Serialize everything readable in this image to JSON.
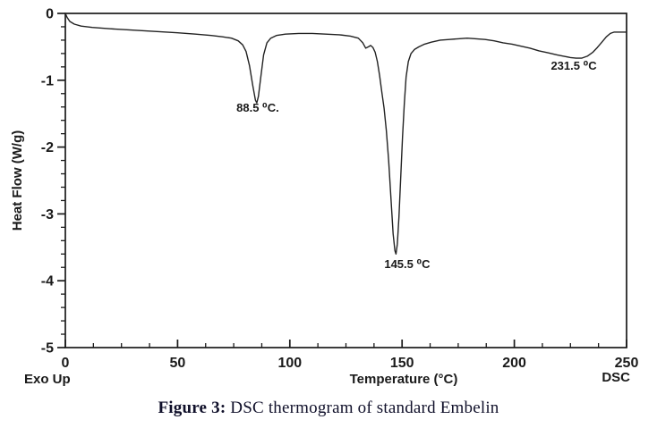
{
  "figure": {
    "caption_prefix": "Figure 3:",
    "caption_text": " DSC thermogram of standard Embelin"
  },
  "chart_data": {
    "type": "line",
    "title": "",
    "xlabel": "Temperature (°C)",
    "ylabel": "Heat Flow (W/g)",
    "xlim": [
      0,
      250
    ],
    "ylim": [
      -5,
      0
    ],
    "x_major_ticks": [
      0,
      50,
      100,
      150,
      200,
      250
    ],
    "x_minor_step": 12.5,
    "y_major_ticks": [
      0,
      -1,
      -2,
      -3,
      -4,
      -5
    ],
    "y_minor_step": 0.2,
    "grid": false,
    "legend": "none",
    "corner_labels": {
      "bottom_left": "Exo Up",
      "bottom_right": "DSC"
    },
    "axis_color": "#1a1a1a",
    "line_color": "#222222",
    "annotations": [
      {
        "label": "88.5 ⁰C.",
        "x": 85.7,
        "y": -1.47
      },
      {
        "label": "145.5 ⁰C",
        "x": 152.3,
        "y": -3.81
      },
      {
        "label": "231.5 ⁰C",
        "x": 226.5,
        "y": -0.84
      }
    ],
    "peaks_celsius": [
      88.5,
      145.5,
      231.5
    ],
    "series": [
      {
        "name": "DSC heat flow",
        "points": [
          [
            0,
            0
          ],
          [
            0.8,
            -0.06
          ],
          [
            2,
            -0.12
          ],
          [
            4,
            -0.16
          ],
          [
            7,
            -0.19
          ],
          [
            12,
            -0.21
          ],
          [
            20,
            -0.23
          ],
          [
            30,
            -0.25
          ],
          [
            40,
            -0.27
          ],
          [
            50,
            -0.29
          ],
          [
            58,
            -0.31
          ],
          [
            65,
            -0.33
          ],
          [
            70,
            -0.35
          ],
          [
            74,
            -0.37
          ],
          [
            77,
            -0.41
          ],
          [
            79,
            -0.47
          ],
          [
            80.5,
            -0.57
          ],
          [
            82,
            -0.78
          ],
          [
            83.5,
            -1.08
          ],
          [
            84.7,
            -1.3
          ],
          [
            85.3,
            -1.34
          ],
          [
            86,
            -1.24
          ],
          [
            87,
            -0.97
          ],
          [
            88.3,
            -0.62
          ],
          [
            89.8,
            -0.44
          ],
          [
            91.5,
            -0.37
          ],
          [
            94,
            -0.33
          ],
          [
            98,
            -0.31
          ],
          [
            104,
            -0.3
          ],
          [
            110,
            -0.3
          ],
          [
            116,
            -0.31
          ],
          [
            122,
            -0.32
          ],
          [
            127,
            -0.34
          ],
          [
            130.5,
            -0.37
          ],
          [
            132.5,
            -0.44
          ],
          [
            133.8,
            -0.52
          ],
          [
            135,
            -0.5
          ],
          [
            136,
            -0.48
          ],
          [
            137,
            -0.51
          ],
          [
            138,
            -0.58
          ],
          [
            139,
            -0.72
          ],
          [
            140,
            -0.93
          ],
          [
            141,
            -1.18
          ],
          [
            142,
            -1.42
          ],
          [
            143,
            -1.75
          ],
          [
            144,
            -2.2
          ],
          [
            145,
            -2.75
          ],
          [
            146,
            -3.3
          ],
          [
            146.8,
            -3.55
          ],
          [
            147.3,
            -3.6
          ],
          [
            147.9,
            -3.45
          ],
          [
            148.6,
            -3.05
          ],
          [
            149.4,
            -2.45
          ],
          [
            150.2,
            -1.85
          ],
          [
            151,
            -1.35
          ],
          [
            151.8,
            -0.95
          ],
          [
            152.8,
            -0.72
          ],
          [
            154,
            -0.6
          ],
          [
            155.5,
            -0.54
          ],
          [
            157.5,
            -0.5
          ],
          [
            160,
            -0.46
          ],
          [
            163,
            -0.43
          ],
          [
            167,
            -0.4
          ],
          [
            171,
            -0.39
          ],
          [
            175,
            -0.38
          ],
          [
            179,
            -0.37
          ],
          [
            183,
            -0.38
          ],
          [
            187,
            -0.39
          ],
          [
            191,
            -0.41
          ],
          [
            195,
            -0.44
          ],
          [
            199,
            -0.46
          ],
          [
            203,
            -0.49
          ],
          [
            207,
            -0.52
          ],
          [
            211,
            -0.56
          ],
          [
            215,
            -0.59
          ],
          [
            219,
            -0.62
          ],
          [
            222,
            -0.64
          ],
          [
            225,
            -0.66
          ],
          [
            227.5,
            -0.67
          ],
          [
            230,
            -0.67
          ],
          [
            232.5,
            -0.64
          ],
          [
            235,
            -0.58
          ],
          [
            237,
            -0.51
          ],
          [
            239,
            -0.43
          ],
          [
            241,
            -0.35
          ],
          [
            242.8,
            -0.3
          ],
          [
            244.5,
            -0.28
          ],
          [
            247,
            -0.28
          ],
          [
            250,
            -0.28
          ]
        ]
      }
    ]
  }
}
